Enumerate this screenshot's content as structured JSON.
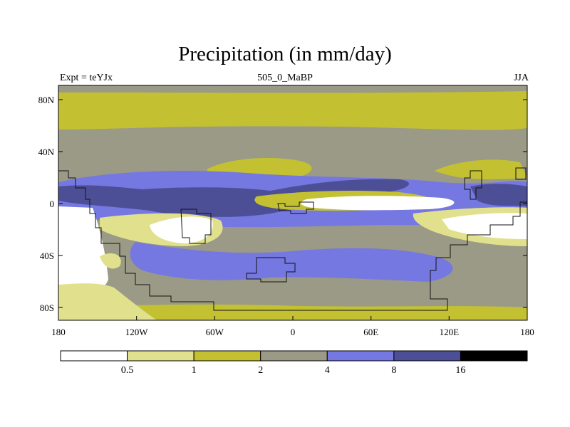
{
  "title": "Precipitation (in mm/day)",
  "subtitle_left": "Expt = teYJx",
  "subtitle_center": "505_0_MaBP",
  "subtitle_right": "JJA",
  "y_ticks": [
    "80N",
    "40N",
    "0",
    "40S",
    "80S"
  ],
  "x_ticks": [
    "180",
    "120W",
    "60W",
    "0",
    "60E",
    "120E",
    "180"
  ],
  "colorbar": {
    "labels": [
      "0.5",
      "1",
      "2",
      "4",
      "8",
      "16"
    ],
    "colors": [
      "#ffffff",
      "#e1e08c",
      "#c3c132",
      "#9a9a86",
      "#7678e2",
      "#4d4f96",
      "#000000"
    ]
  }
}
